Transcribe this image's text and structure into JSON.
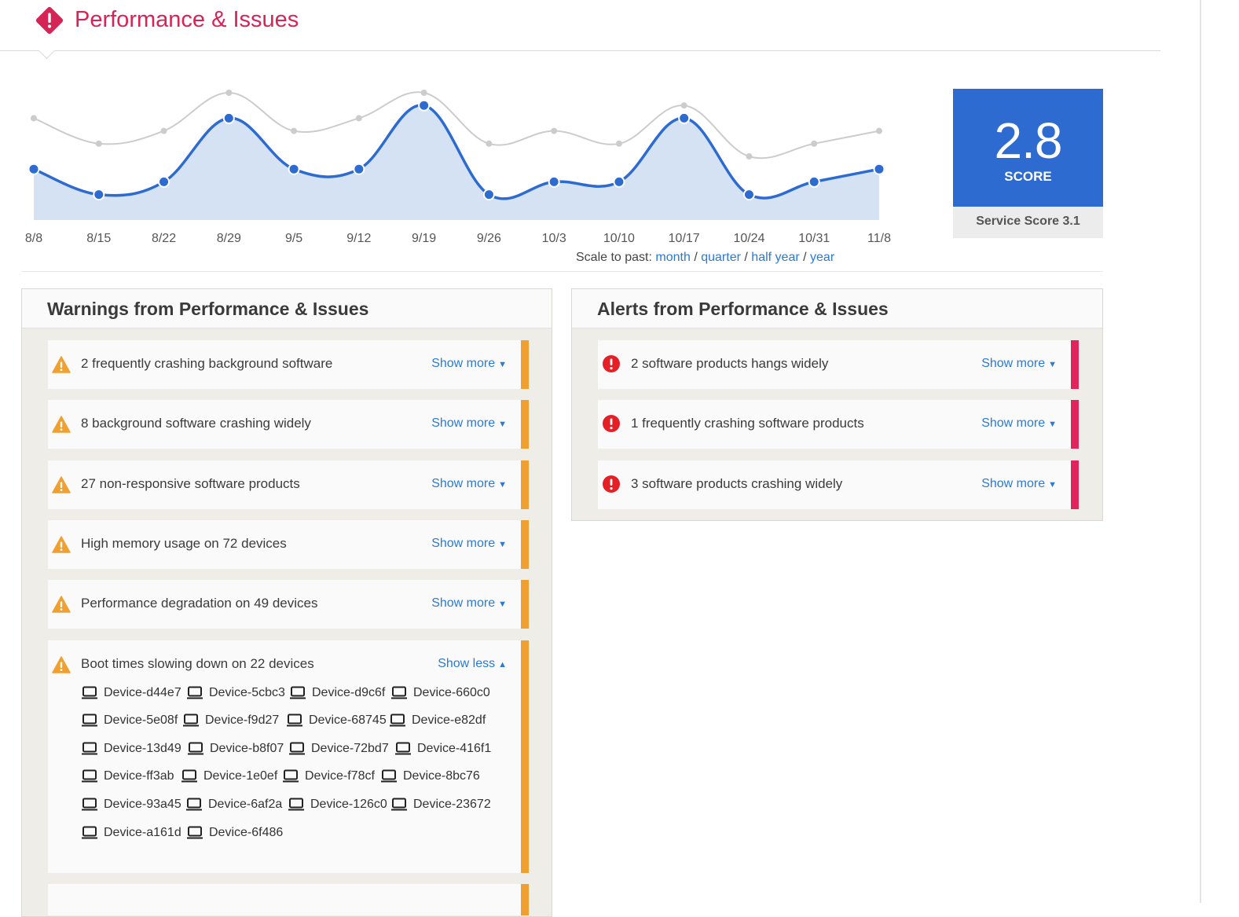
{
  "header": {
    "title": "Performance & Issues",
    "icon": "alert-diamond-icon",
    "accent": "#d52556"
  },
  "chart_data": {
    "type": "area",
    "x": [
      "8/8",
      "8/15",
      "8/22",
      "8/29",
      "9/5",
      "9/12",
      "9/19",
      "9/26",
      "10/3",
      "10/10",
      "10/17",
      "10/24",
      "10/31",
      "11/8"
    ],
    "series": [
      {
        "values": [
          2.4,
          2.0,
          2.2,
          3.2,
          2.4,
          2.4,
          3.4,
          2.0,
          2.2,
          2.2,
          3.2,
          2.0,
          2.2,
          2.4
        ],
        "color": "#2d6bd0"
      },
      {
        "values": [
          3.2,
          2.8,
          3.0,
          3.6,
          3.0,
          3.2,
          3.6,
          2.8,
          3.0,
          2.8,
          3.4,
          2.6,
          2.8,
          3.0
        ],
        "color": "#cccccc"
      }
    ],
    "grid": false
  },
  "scale": {
    "label": "Scale to past:",
    "options": [
      "month",
      "quarter",
      "half year",
      "year"
    ],
    "sep": "/"
  },
  "score": {
    "value": "2.8",
    "label": "SCORE",
    "service": "Service Score 3.1",
    "color": "#2d6bd0"
  },
  "warnings": {
    "title": "Warnings from Performance & Issues",
    "color": "#f0a030",
    "icon": "warning-triangle-icon",
    "items": [
      {
        "text": "2 frequently crashing background software",
        "action": "Show more"
      },
      {
        "text": "8 background software crashing widely",
        "action": "Show more"
      },
      {
        "text": "27 non-responsive software products",
        "action": "Show more"
      },
      {
        "text": "High memory usage on 72 devices",
        "action": "Show more"
      },
      {
        "text": "Performance degradation on 49 devices",
        "action": "Show more"
      },
      {
        "text": "Boot times slowing down on 22 devices",
        "action": "Show less"
      }
    ],
    "devices": [
      "Device-d44e7",
      "Device-5cbc3",
      "Device-d9c6f",
      "Device-660c0",
      "Device-5e08f",
      "Device-f9d27",
      "Device-68745",
      "Device-e82df",
      "Device-13d49",
      "Device-b8f07",
      "Device-72bd7",
      "Device-416f1",
      "Device-ff3ab",
      "Device-1e0ef",
      "Device-f78cf",
      "Device-8bc76",
      "Device-93a45",
      "Device-6af2a",
      "Device-126c0",
      "Device-23672",
      "Device-a161d",
      "Device-6f486"
    ]
  },
  "alerts": {
    "title": "Alerts from Performance & Issues",
    "color": "#e0245e",
    "icon": "alert-circle-icon",
    "items": [
      {
        "text": "2 software products hangs widely",
        "action": "Show more"
      },
      {
        "text": "1 frequently crashing software products",
        "action": "Show more"
      },
      {
        "text": "3 software products crashing widely",
        "action": "Show more"
      }
    ]
  }
}
